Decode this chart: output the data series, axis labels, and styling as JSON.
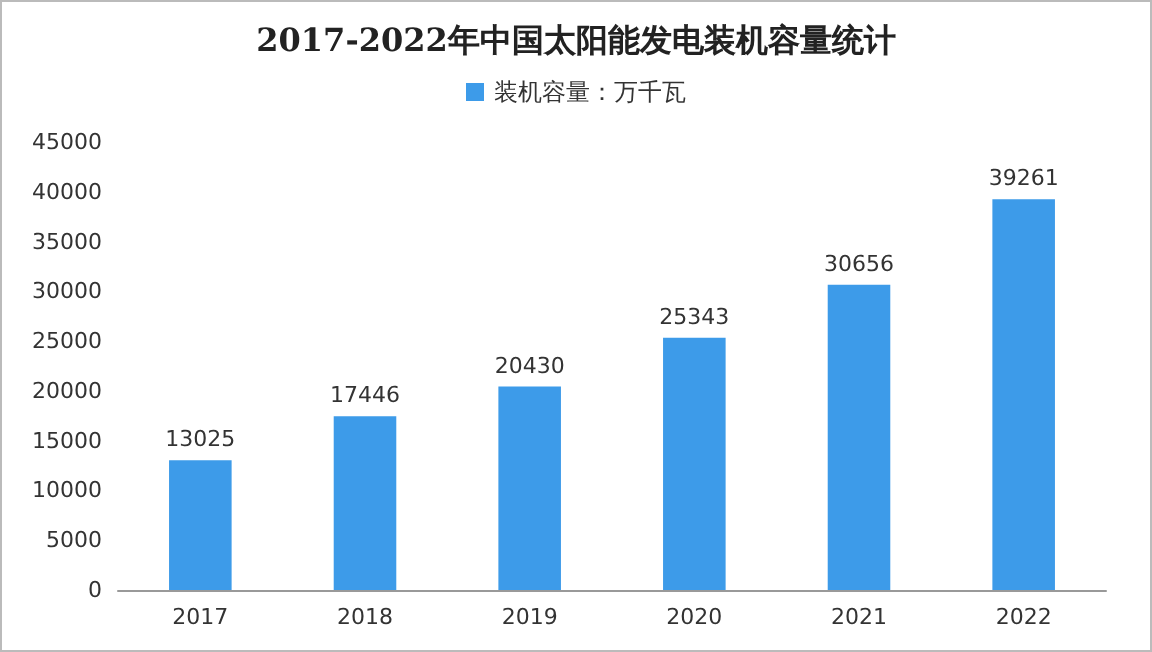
{
  "chart_data": {
    "type": "bar",
    "title": "2017-2022年中国太阳能发电装机容量统计",
    "categories": [
      "2017",
      "2018",
      "2019",
      "2020",
      "2021",
      "2022"
    ],
    "series": [
      {
        "name": "装机容量：万千瓦",
        "color": "#3d9be9",
        "values": [
          13025,
          17446,
          20430,
          25343,
          30656,
          39261
        ]
      }
    ],
    "ylim": [
      0,
      45000
    ],
    "yticks": [
      0,
      5000,
      10000,
      15000,
      20000,
      25000,
      30000,
      35000,
      40000,
      45000
    ],
    "grid": false,
    "legend": "top",
    "data_labels": true
  }
}
